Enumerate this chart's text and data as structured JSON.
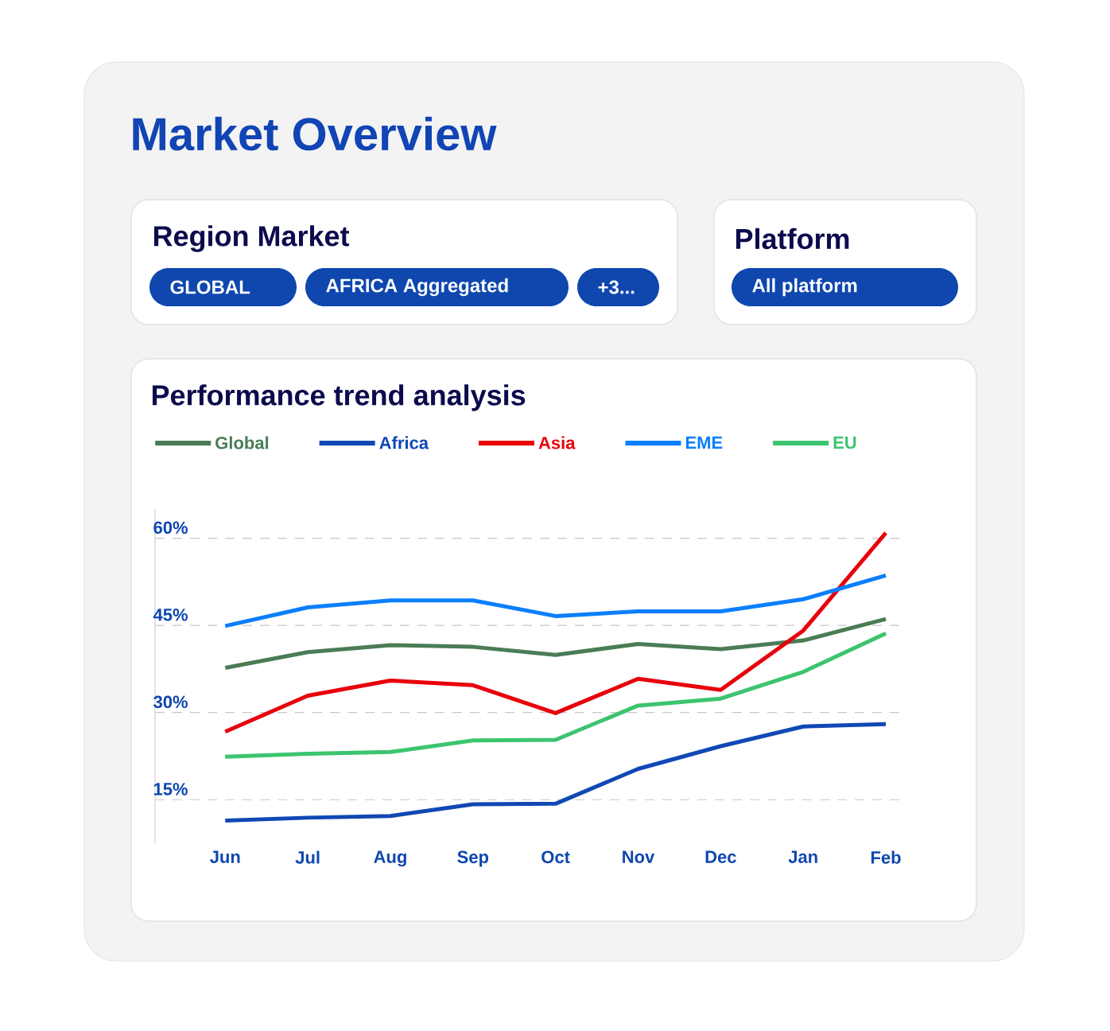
{
  "chart_data": {
    "type": "line",
    "title": "Market Overview",
    "subtitle": "Performance trend analysis",
    "annotations": [
      "Region Market",
      "GLOBAL",
      "AFRICA Aggregated",
      "+3...",
      "Platform",
      "All platform"
    ],
    "categories": [
      "Jun",
      "Jul",
      "Aug",
      "Sep",
      "Oct",
      "Nov",
      "Dec",
      "Jan",
      "Feb"
    ],
    "ylim": [
      7.5,
      65
    ],
    "yticks": [
      {
        "value": 15,
        "label": "15%"
      },
      {
        "value": 30,
        "label": "30%"
      },
      {
        "value": 45,
        "label": "45%"
      },
      {
        "value": 60,
        "label": "60%"
      }
    ],
    "grid": "y",
    "legend": "top left",
    "series": [
      {
        "name": "Global",
        "color": "#4a7c55",
        "values": [
          37.7,
          40.4,
          41.6,
          41.3,
          39.9,
          41.8,
          40.9,
          42.4,
          46.1
        ]
      },
      {
        "name": "Africa",
        "color": "#1048b4",
        "values": [
          11.4,
          11.9,
          12.2,
          14.2,
          14.3,
          20.3,
          24.2,
          27.6,
          28.0
        ]
      },
      {
        "name": "Asia",
        "color": "#e8000b",
        "values": [
          26.7,
          32.9,
          35.5,
          34.7,
          29.9,
          35.8,
          33.9,
          44.1,
          60.9
        ]
      },
      {
        "name": "EME",
        "color": "#0a7ffb",
        "values": [
          44.9,
          48.1,
          49.3,
          49.3,
          46.6,
          47.4,
          47.4,
          49.5,
          53.6
        ]
      },
      {
        "name": "EU",
        "color": "#3cc46e",
        "values": [
          22.4,
          22.9,
          23.2,
          25.2,
          25.3,
          31.2,
          32.4,
          37.0,
          43.6
        ]
      }
    ]
  }
}
